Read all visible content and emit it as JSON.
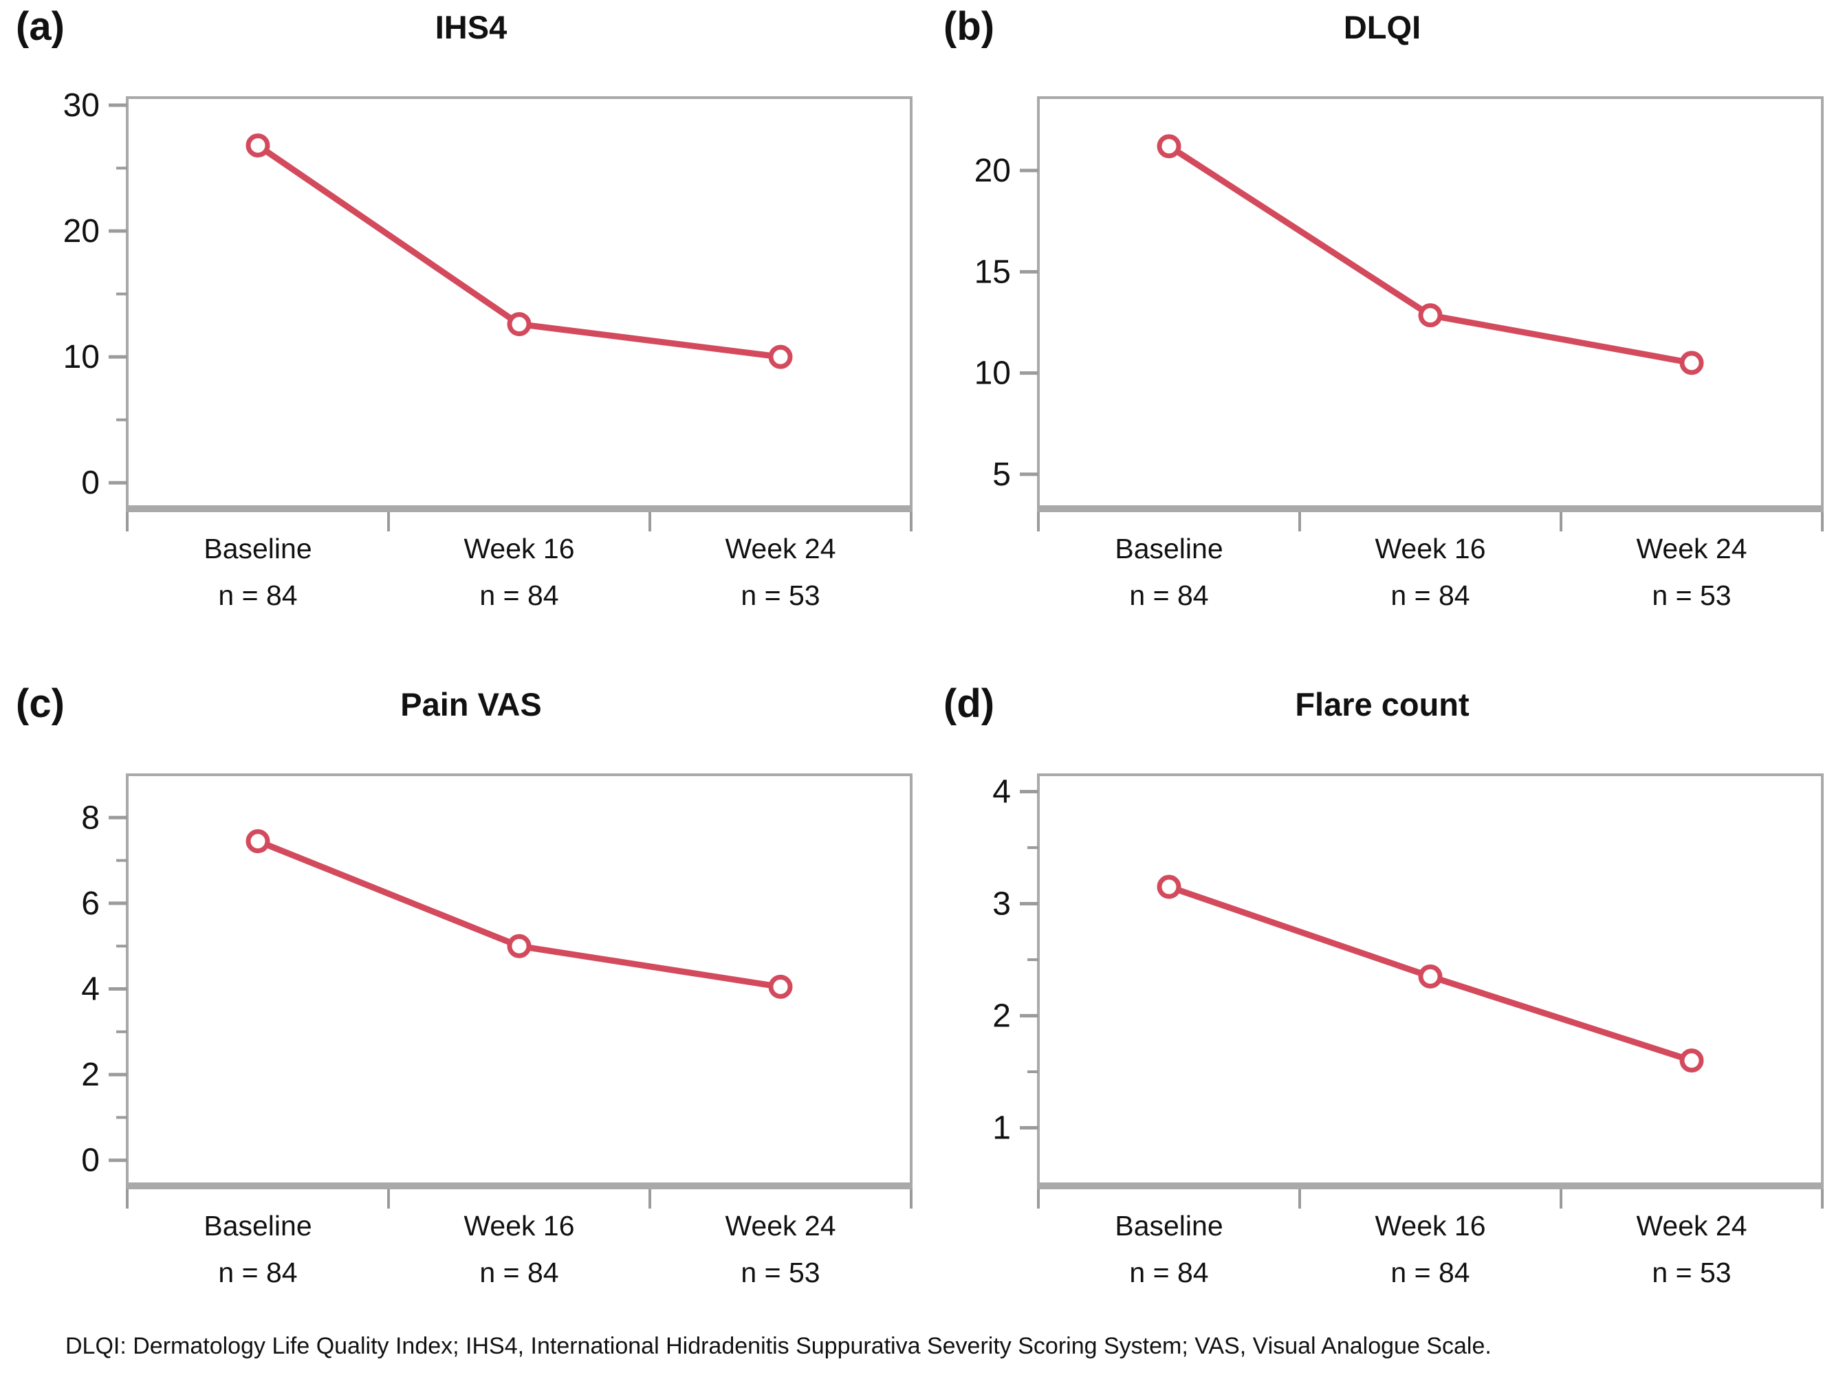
{
  "figure": {
    "footnote": "DLQI: Dermatology Life Quality Index; IHS4, International Hidradenitis Suppurativa Severity Scoring System; VAS, Visual Analogue Scale.",
    "axis_color": "#a9a9a9",
    "tick_color": "#9b9b9b",
    "label_color": "#111111",
    "accent_color": "#d34a5d"
  },
  "chart_data": [
    {
      "type": "line",
      "panel_label": "(a)",
      "title": "IHS4",
      "categories": [
        "Baseline",
        "Week 16",
        "Week 24"
      ],
      "category_sublabels": [
        "n = 84",
        "n = 84",
        "n = 53"
      ],
      "values": [
        26.8,
        12.6,
        10.0
      ],
      "ylim": [
        -1.9,
        30.6
      ],
      "y_major_ticks": [
        0,
        10,
        20,
        30
      ],
      "y_minor_ticks": [
        5,
        15,
        25
      ],
      "grid": false,
      "legend": false,
      "marker": "open-circle",
      "line_color": "#d34a5d"
    },
    {
      "type": "line",
      "panel_label": "(b)",
      "title": "DLQI",
      "categories": [
        "Baseline",
        "Week 16",
        "Week 24"
      ],
      "category_sublabels": [
        "n = 84",
        "n = 84",
        "n = 53"
      ],
      "values": [
        21.2,
        12.85,
        10.5
      ],
      "ylim": [
        3.4,
        23.6
      ],
      "y_major_ticks": [
        5,
        10,
        15,
        20
      ],
      "y_minor_ticks": [],
      "grid": false,
      "legend": false,
      "marker": "open-circle",
      "line_color": "#d34a5d"
    },
    {
      "type": "line",
      "panel_label": "(c)",
      "title": "Pain VAS",
      "categories": [
        "Baseline",
        "Week 16",
        "Week 24"
      ],
      "category_sublabels": [
        "n = 84",
        "n = 84",
        "n = 53"
      ],
      "values": [
        7.45,
        5.0,
        4.05
      ],
      "ylim": [
        -0.55,
        9.0
      ],
      "y_major_ticks": [
        0,
        2,
        4,
        6,
        8
      ],
      "y_minor_ticks": [
        1,
        3,
        5,
        7
      ],
      "grid": false,
      "legend": false,
      "marker": "open-circle",
      "line_color": "#d34a5d"
    },
    {
      "type": "line",
      "panel_label": "(d)",
      "title": "Flare count",
      "categories": [
        "Baseline",
        "Week 16",
        "Week 24"
      ],
      "category_sublabels": [
        "n = 84",
        "n = 84",
        "n = 53"
      ],
      "values": [
        3.15,
        2.35,
        1.6
      ],
      "ylim": [
        0.5,
        4.15
      ],
      "y_major_ticks": [
        1,
        2,
        3,
        4
      ],
      "y_minor_ticks": [
        1.5,
        2.5,
        3.5
      ],
      "grid": false,
      "legend": false,
      "marker": "open-circle",
      "line_color": "#d34a5d"
    }
  ]
}
